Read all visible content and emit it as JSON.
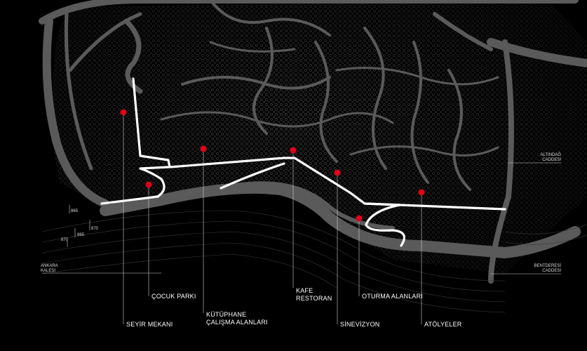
{
  "map": {
    "colors": {
      "background": "#000000",
      "roads": "#5a5a5a",
      "route": "#ffffff",
      "markers": "#e0001b"
    },
    "pois": [
      {
        "id": "seyir",
        "lines": [
          "SEYİR MEKANI"
        ]
      },
      {
        "id": "cocuk",
        "lines": [
          "ÇOCUK PARKI"
        ]
      },
      {
        "id": "kutuphane",
        "lines": [
          "KÜTÜPHANE",
          "ÇALIŞMA ALANLARI"
        ]
      },
      {
        "id": "kafe",
        "lines": [
          "KAFE",
          "RESTORAN"
        ]
      },
      {
        "id": "sinevizyon",
        "lines": [
          "SİNEVİZYON"
        ]
      },
      {
        "id": "oturma",
        "lines": [
          "OTURMA ALANLARI"
        ]
      },
      {
        "id": "atolyeler",
        "lines": [
          "ATÖLYELER"
        ]
      }
    ],
    "streets": {
      "altindag": [
        "ALTINDAĞ",
        "CADDESİ"
      ],
      "bentderesi": [
        "BENTDERESİ",
        "CADDESİ"
      ],
      "kale": [
        "ANKARA",
        "KALESİ"
      ]
    },
    "contour_labels": [
      "865",
      "870",
      "865",
      "870"
    ]
  }
}
